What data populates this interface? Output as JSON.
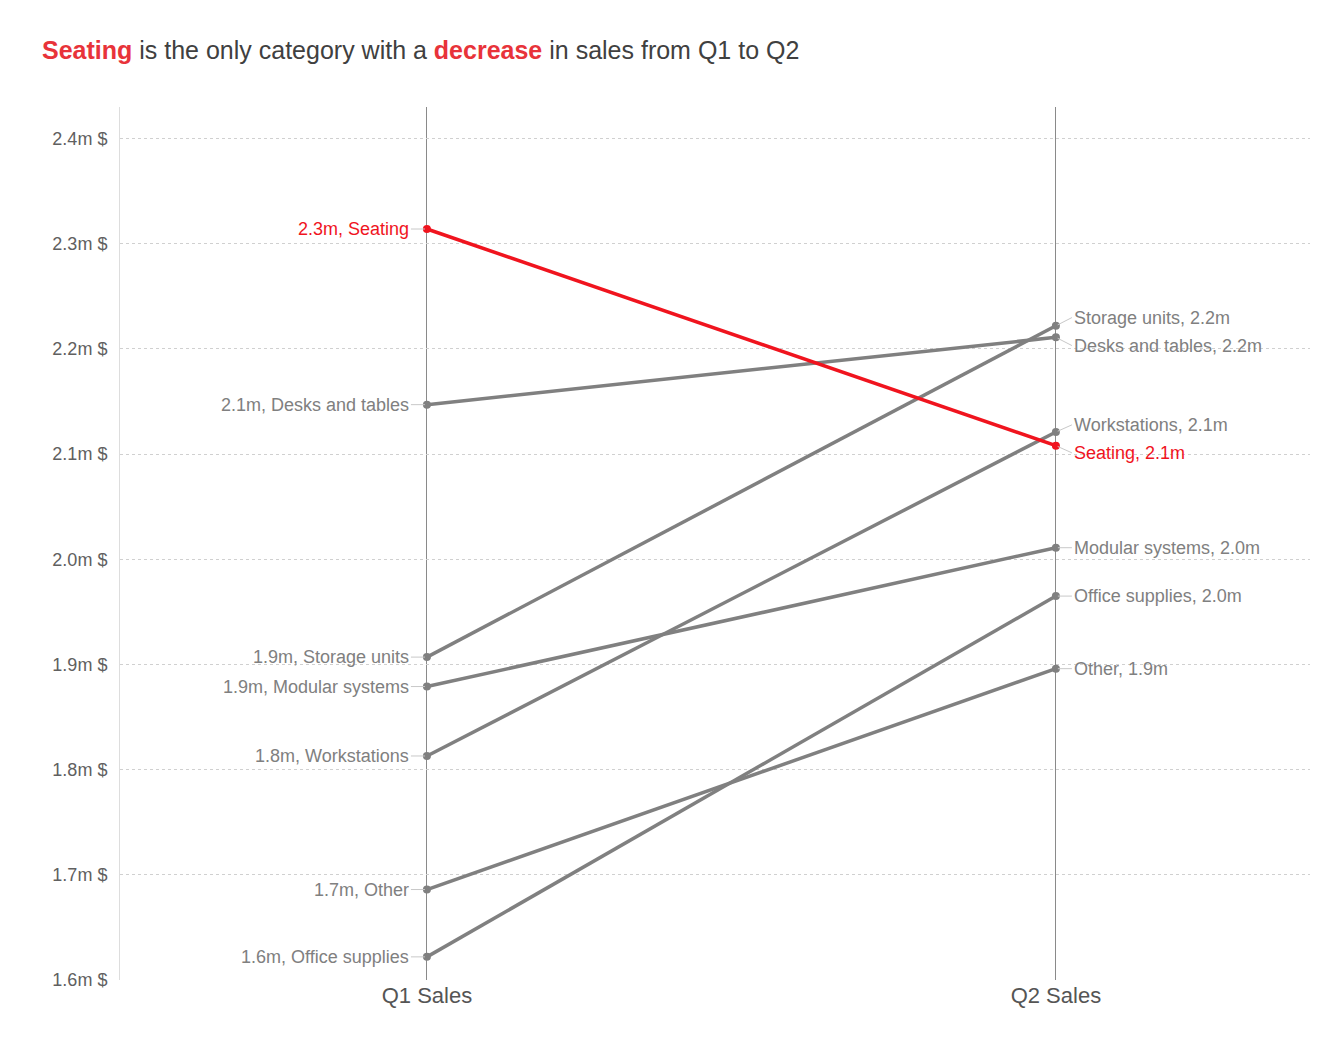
{
  "chart_data": {
    "type": "line",
    "title": [
      {
        "text": "Seating",
        "color": "#e8333a"
      },
      {
        "text": " is the only category with a "
      },
      {
        "text": "decrease",
        "color": "#e8333a"
      },
      {
        "text": " in sales from Q1 to Q2"
      }
    ],
    "categories": [
      "Q1 Sales",
      "Q2 Sales"
    ],
    "series": [
      {
        "name": "Seating",
        "color": "#f0141e",
        "values": [
          2314000,
          2108000
        ],
        "value_labels": [
          "2.3m, Seating",
          "Seating, 2.1m"
        ]
      },
      {
        "name": "Desks and tables",
        "color": "#808080",
        "values": [
          2147000,
          2211000
        ],
        "value_labels": [
          "2.1m, Desks and tables",
          "Desks and tables, 2.2m"
        ]
      },
      {
        "name": "Storage units",
        "color": "#808080",
        "values": [
          1907000,
          2222000
        ],
        "value_labels": [
          "1.9m, Storage units",
          "Storage units, 2.2m"
        ]
      },
      {
        "name": "Modular systems",
        "color": "#808080",
        "values": [
          1879000,
          2011000
        ],
        "value_labels": [
          "1.9m, Modular systems",
          "Modular systems, 2.0m"
        ]
      },
      {
        "name": "Workstations",
        "color": "#808080",
        "values": [
          1813000,
          2121000
        ],
        "value_labels": [
          "1.8m, Workstations",
          "Workstations, 2.1m"
        ]
      },
      {
        "name": "Other",
        "color": "#808080",
        "values": [
          1686000,
          1896000
        ],
        "value_labels": [
          "1.7m, Other",
          "Other, 1.9m"
        ]
      },
      {
        "name": "Office supplies",
        "color": "#808080",
        "values": [
          1622000,
          1965000
        ],
        "value_labels": [
          "1.6m, Office supplies",
          "Office supplies, 2.0m"
        ]
      }
    ],
    "ylim": [
      1600000,
      2430000
    ],
    "yticks": [
      {
        "value": 1600000,
        "label": "1.6m $"
      },
      {
        "value": 1700000,
        "label": "1.7m $"
      },
      {
        "value": 1800000,
        "label": "1.8m $"
      },
      {
        "value": 1900000,
        "label": "1.9m $"
      },
      {
        "value": 2000000,
        "label": "2.0m $"
      },
      {
        "value": 2100000,
        "label": "2.1m $"
      },
      {
        "value": 2200000,
        "label": "2.2m $"
      },
      {
        "value": 2300000,
        "label": "2.3m $"
      },
      {
        "value": 2400000,
        "label": "2.4m $"
      }
    ],
    "grid": true,
    "data_labels": true
  }
}
